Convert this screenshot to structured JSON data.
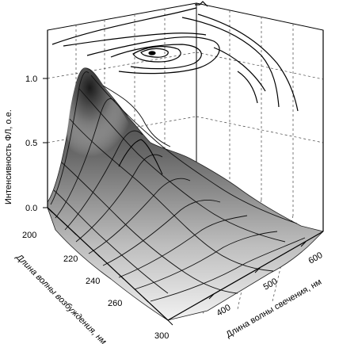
{
  "chart_data": {
    "type": "surface3d",
    "title": "",
    "zlabel": "Интенсивность ФЛ, о.е.",
    "excitation_label": "Длина волны возбуждения, нм",
    "emission_label": "Длина волны свечения, нм",
    "z_ticks": [
      "0.0",
      "0.5",
      "1.0"
    ],
    "excitation_ticks": [
      "200",
      "220",
      "240",
      "260",
      "300"
    ],
    "emission_ticks": [
      "400",
      "500",
      "600"
    ],
    "zlim": [
      0,
      1.1
    ],
    "excitation_range": [
      200,
      300
    ],
    "emission_range": [
      300,
      650
    ],
    "peak": {
      "excitation_nm": 230,
      "emission_nm": 330,
      "intensity": 1.0
    },
    "secondary_peak": {
      "excitation_nm": 260,
      "emission_nm": 420,
      "intensity": 0.55
    },
    "grid": true,
    "contour_projection": "top"
  }
}
